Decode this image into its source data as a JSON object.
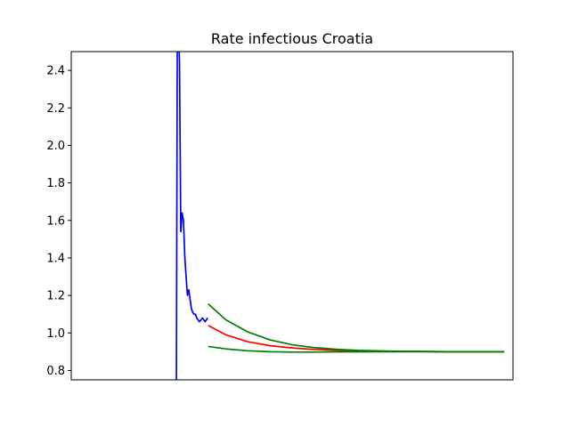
{
  "chart_data": {
    "type": "line",
    "title": "Rate infectious Croatia",
    "xlabel": "",
    "ylabel": "",
    "xlim": [
      0,
      100
    ],
    "ylim": [
      0.75,
      2.5
    ],
    "x_ticks_shown": false,
    "y_ticks": [
      0.8,
      1.0,
      1.2,
      1.4,
      1.6,
      1.8,
      2.0,
      2.2,
      2.4
    ],
    "y_tick_labels": [
      "0.8",
      "1.0",
      "1.2",
      "1.4",
      "1.6",
      "1.8",
      "2.0",
      "2.2",
      "2.4"
    ],
    "grid": false,
    "series": [
      {
        "color": "#0000ff",
        "x": [
          23.8,
          24.0,
          24.3,
          24.5,
          24.8,
          25.1,
          25.4,
          25.7,
          26.0,
          26.3,
          26.6,
          26.9,
          27.2,
          27.5,
          27.8,
          28.1,
          28.4,
          28.7,
          29.0,
          29.4,
          29.7,
          30.0,
          30.3,
          30.6,
          30.9
        ],
        "y": [
          0.75,
          2.5,
          2.6,
          2.45,
          1.54,
          1.64,
          1.6,
          1.41,
          1.3,
          1.2,
          1.23,
          1.18,
          1.13,
          1.11,
          1.1,
          1.1,
          1.08,
          1.07,
          1.06,
          1.07,
          1.08,
          1.07,
          1.06,
          1.07,
          1.08
        ]
      },
      {
        "color": "#ff0000",
        "x": [
          31,
          35,
          40,
          45,
          50,
          55,
          60,
          65,
          70,
          75,
          80,
          85,
          90,
          95,
          98
        ],
        "y": [
          1.04,
          0.99,
          0.953,
          0.932,
          0.92,
          0.912,
          0.907,
          0.904,
          0.903,
          0.902,
          0.901,
          0.9,
          0.9,
          0.9,
          0.9
        ]
      },
      {
        "color": "#008000",
        "x": [
          31,
          35,
          40,
          45,
          50,
          55,
          60,
          65,
          70,
          75,
          80,
          85,
          90,
          95,
          98
        ],
        "y": [
          1.155,
          1.07,
          1.005,
          0.963,
          0.937,
          0.922,
          0.913,
          0.907,
          0.904,
          0.902,
          0.901,
          0.9,
          0.9,
          0.9,
          0.9
        ]
      },
      {
        "color": "#008000",
        "x": [
          31,
          35,
          40,
          45,
          50,
          55,
          60,
          65,
          70,
          75,
          80,
          85,
          90,
          95,
          98
        ],
        "y": [
          0.928,
          0.915,
          0.905,
          0.9,
          0.898,
          0.898,
          0.899,
          0.899,
          0.9,
          0.9,
          0.9,
          0.9,
          0.9,
          0.9,
          0.9
        ]
      }
    ]
  }
}
